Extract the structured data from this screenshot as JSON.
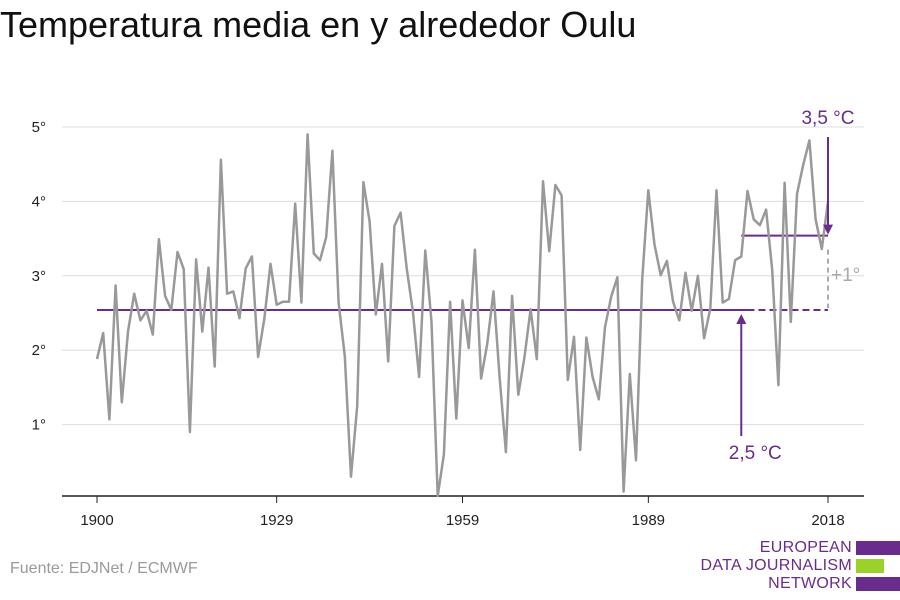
{
  "title": "Temperatura media en y alrededor Oulu",
  "source": "Fuente: EDJNet / ECMWF",
  "logo": {
    "lines": [
      "EUROPEAN",
      "DATA JOURNALISM",
      "NETWORK"
    ],
    "colors": [
      "#6a2c8c",
      "#9ad12b",
      "#6a2c8c"
    ]
  },
  "chart_data": {
    "type": "line",
    "title": "Temperatura media en y alrededor Oulu",
    "xlabel": "",
    "ylabel": "",
    "xlim": [
      1900,
      2018
    ],
    "ylim": [
      0,
      5
    ],
    "x_ticks": [
      1900,
      1929,
      1959,
      1989,
      2018
    ],
    "y_ticks": [
      1,
      2,
      3,
      4,
      5
    ],
    "y_tick_labels": [
      "1°",
      "2°",
      "3°",
      "4°",
      "5°"
    ],
    "grid": true,
    "colors": {
      "series": "#999999",
      "reference": "#6a2c8c",
      "delta": "#aaaaaa"
    },
    "series": [
      {
        "x_start": 1900,
        "values": [
          1.88,
          2.23,
          1.07,
          2.87,
          1.3,
          2.25,
          2.76,
          2.4,
          2.53,
          2.21,
          3.49,
          2.73,
          2.54,
          3.32,
          3.09,
          0.9,
          3.22,
          2.25,
          3.11,
          1.78,
          4.56,
          2.76,
          2.79,
          2.43,
          3.1,
          3.26,
          1.91,
          2.42,
          3.16,
          2.61,
          2.65,
          2.65,
          3.97,
          2.64,
          4.9,
          3.3,
          3.21,
          3.52,
          4.68,
          2.64,
          1.92,
          0.3,
          1.25,
          4.26,
          3.73,
          2.48,
          3.16,
          1.85,
          3.67,
          3.85,
          3.1,
          2.52,
          1.64,
          3.34,
          2.38,
          0.04,
          0.6,
          2.65,
          1.08,
          2.67,
          2.03,
          3.35,
          1.62,
          2.09,
          2.79,
          1.62,
          0.63,
          2.73,
          1.4,
          1.9,
          2.55,
          1.88,
          4.27,
          3.33,
          4.22,
          4.08,
          1.6,
          2.18,
          0.66,
          2.17,
          1.64,
          1.34,
          2.31,
          2.72,
          2.98,
          0.1,
          1.68,
          0.52,
          2.95,
          4.15,
          3.42,
          3.01,
          3.2,
          2.65,
          2.4,
          3.04,
          2.53,
          3.0,
          2.16,
          2.56,
          4.15,
          2.64,
          2.69,
          3.21,
          3.26,
          4.14,
          3.76,
          3.68,
          3.89,
          3.08,
          1.53,
          4.25,
          2.38,
          4.1,
          4.49,
          4.82,
          3.76,
          3.36,
          4.0
        ]
      }
    ],
    "reference_lines": [
      {
        "label": "2,5 °C",
        "value": 2.54,
        "from": 1900,
        "to": 2018,
        "solid_to": 2005,
        "label_year": 2004
      },
      {
        "label": "3,5 °C",
        "value": 3.54,
        "from": 2004,
        "to": 2018,
        "label_year": 2018
      }
    ],
    "delta_label": "+1°"
  }
}
